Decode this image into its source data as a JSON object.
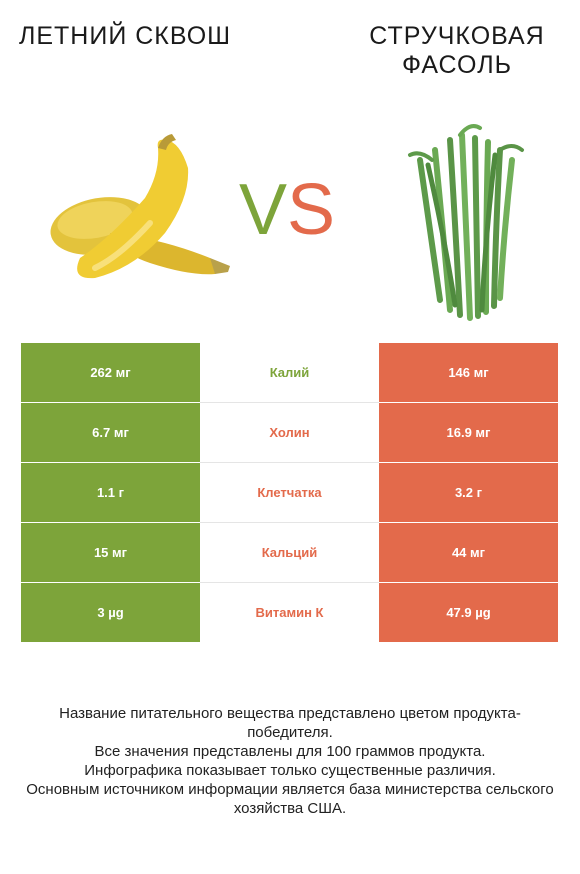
{
  "left_food": {
    "title": "Летний сквош",
    "color": "#7da43a"
  },
  "right_food": {
    "title": "Стручковая фасоль",
    "color": "#e36a4b"
  },
  "vs": {
    "v": "V",
    "s": "S"
  },
  "rows": [
    {
      "nutrient": "Калий",
      "left": "262 мг",
      "right": "146 мг",
      "winner": "left"
    },
    {
      "nutrient": "Холин",
      "left": "6.7 мг",
      "right": "16.9 мг",
      "winner": "right"
    },
    {
      "nutrient": "Клетчатка",
      "left": "1.1 г",
      "right": "3.2 г",
      "winner": "right"
    },
    {
      "nutrient": "Кальций",
      "left": "15 мг",
      "right": "44 мг",
      "winner": "right"
    },
    {
      "nutrient": "Витамин К",
      "left": "3 µg",
      "right": "47.9 µg",
      "winner": "right"
    }
  ],
  "footer": [
    "Название питательного вещества представлено цветом продукта-победителя.",
    "Все значения представлены для 100 граммов продукта.",
    "Инфографика показывает только существенные различия.",
    "Основным источником информации является база министерства сельского хозяйства США."
  ]
}
